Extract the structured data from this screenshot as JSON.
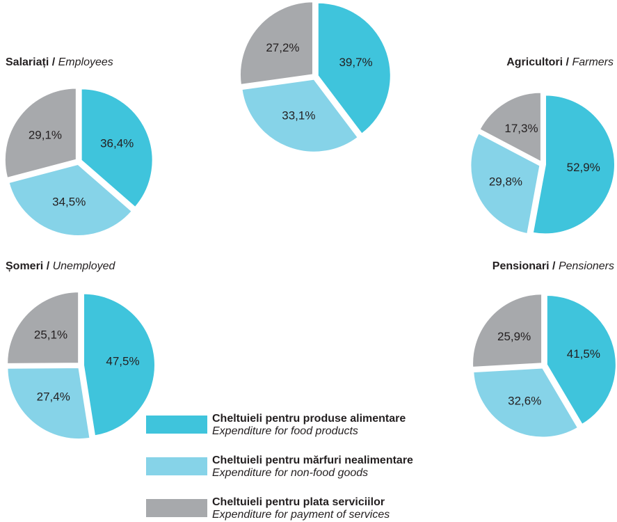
{
  "chart_data": [
    {
      "type": "pie",
      "values": [
        39.7,
        33.1,
        27.2
      ],
      "value_labels": [
        "39,7%",
        "33,1%",
        "27,2%"
      ]
    },
    {
      "type": "pie",
      "title": "Salariați /",
      "subtitle": "Employees",
      "values": [
        36.4,
        34.5,
        29.1
      ],
      "value_labels": [
        "36,4%",
        "34,5%",
        "29,1%"
      ]
    },
    {
      "type": "pie",
      "title": "Agricultori /",
      "subtitle": "Farmers",
      "values": [
        52.9,
        29.8,
        17.3
      ],
      "value_labels": [
        "52,9%",
        "29,8%",
        "17,3%"
      ]
    },
    {
      "type": "pie",
      "title": "Șomeri /",
      "subtitle": "Unemployed",
      "values": [
        47.5,
        27.4,
        25.1
      ],
      "value_labels": [
        "47,5%",
        "27,4%",
        "25,1%"
      ]
    },
    {
      "type": "pie",
      "title": "Pensionari /",
      "subtitle": "Pensioners",
      "values": [
        41.5,
        32.6,
        25.9
      ],
      "value_labels": [
        "41,5%",
        "32,6%",
        "25,9%"
      ]
    }
  ],
  "legend": [
    {
      "name": "Cheltuieli pentru produse alimentare",
      "name_en": "Expenditure for food products",
      "color": "#3fc4dc"
    },
    {
      "name": "Cheltuieli pentru mărfuri nealimentare",
      "name_en": "Expenditure for non-food goods",
      "color": "#86d3e8"
    },
    {
      "name": "Cheltuieli pentru plata serviciilor",
      "name_en": "Expenditure for payment of services",
      "color": "#a7a9ac"
    }
  ]
}
